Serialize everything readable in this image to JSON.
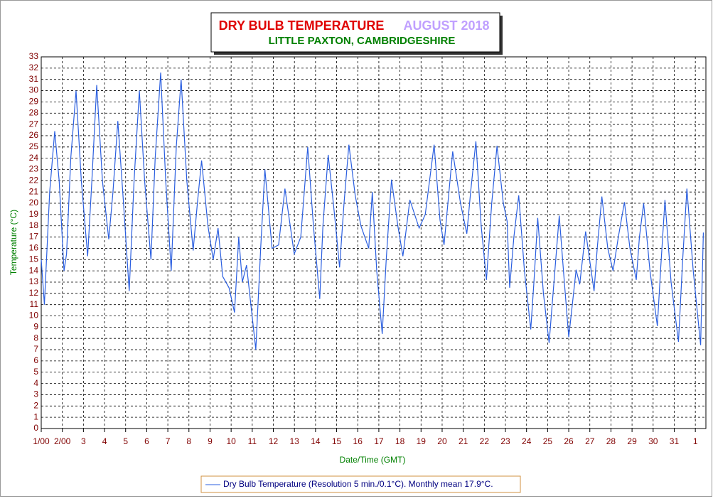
{
  "chart_data": {
    "type": "line",
    "title": "DRY BULB TEMPERATURE",
    "title_period": "AUGUST 2018",
    "subtitle": "LITTLE PAXTON, CAMBRIDGESHIRE",
    "y_label": "Temperature (°C)",
    "x_label": "Date/Time (GMT)",
    "x": [
      0,
      0.15,
      0.4,
      0.64,
      0.85,
      1.08,
      1.2,
      1.4,
      1.65,
      1.9,
      2.2,
      2.4,
      2.63,
      2.9,
      3.2,
      3.4,
      3.63,
      3.9,
      4.17,
      4.4,
      4.65,
      4.9,
      5.2,
      5.4,
      5.66,
      5.9,
      6.16,
      6.4,
      6.63,
      6.9,
      7.2,
      7.4,
      7.6,
      7.9,
      8.15,
      8.38,
      8.6,
      8.9,
      9.16,
      9.36,
      9.53,
      9.73,
      10.17,
      10.4,
      10.6,
      10.94,
      11.25,
      11.55,
      11.99,
      12.3,
      12.63,
      12.9,
      13.2,
      13.35,
      13.6,
      13.9,
      14.14,
      14.35,
      14.58,
      14.88,
      15.15,
      15.52,
      15.69,
      15.9,
      16.16,
      16.35,
      16.6,
      16.9,
      17.14,
      17.47,
      17.91,
      18.2,
      18.62,
      18.9,
      19.09,
      19.5,
      19.87,
      20.17,
      20.35,
      20.6,
      20.85,
      21.1,
      21.35,
      21.6,
      21.9,
      22.08,
      22.2,
      22.4,
      22.63,
      22.9,
      23.2,
      23.35,
      23.53,
      23.8,
      24.07,
      24.3,
      24.55,
      24.75,
      25.0,
      25.35,
      25.52,
      25.8,
      26.2,
      26.35,
      26.57,
      26.85,
      27.1,
      27.35,
      27.64,
      27.9,
      28.2,
      28.35,
      28.55,
      28.85,
      29.2,
      29.35,
      29.56,
      29.85,
      30.2,
      30.4,
      30.6,
      30.9,
      31.25,
      31.38
    ],
    "series": [
      {
        "name": "Dry Bulb Temperature (Resolution 5 min./0.1°C). Monthly mean 17.9°C.",
        "color": "#2b5fe0",
        "values": [
          15,
          11,
          21,
          26.4,
          22,
          14,
          15.5,
          24,
          30,
          22,
          15.3,
          22,
          30.5,
          22,
          16.8,
          21,
          27.3,
          20,
          12.2,
          22,
          30,
          22,
          15,
          24,
          31.6,
          22,
          14,
          25,
          31,
          22,
          15.8,
          20,
          23.8,
          18,
          15,
          17.8,
          13.5,
          12.5,
          10.3,
          17,
          13,
          14.5,
          7,
          16,
          23,
          16,
          16.3,
          21.3,
          15.5,
          17,
          25,
          18,
          11.5,
          18,
          24.3,
          19,
          14.3,
          20,
          25.2,
          20.7,
          18,
          16,
          21,
          14,
          8.4,
          15,
          22.1,
          18,
          15.3,
          20.3,
          17.8,
          19,
          25.2,
          18.5,
          16.3,
          24.6,
          20,
          17.3,
          21,
          25.5,
          18,
          13.2,
          20,
          25.1,
          20,
          18.4,
          12.5,
          17,
          20.7,
          14,
          8.8,
          13,
          18.7,
          12,
          7.6,
          13,
          18.9,
          14,
          8.1,
          14.1,
          12.8,
          17.5,
          12.2,
          16,
          20.6,
          16,
          14,
          17,
          20.1,
          16,
          13.2,
          17,
          20,
          14,
          9.1,
          14,
          20.3,
          13,
          7.7,
          15,
          21.3,
          14,
          7.4,
          17.4
        ]
      }
    ],
    "xlim": [
      0,
      31.5
    ],
    "xticks": [
      {
        "value": 0,
        "label": "1/00"
      },
      {
        "value": 1,
        "label": "2/00"
      },
      {
        "value": 2,
        "label": "3"
      },
      {
        "value": 3,
        "label": "4"
      },
      {
        "value": 4,
        "label": "5"
      },
      {
        "value": 5,
        "label": "6"
      },
      {
        "value": 6,
        "label": "7"
      },
      {
        "value": 7,
        "label": "8"
      },
      {
        "value": 8,
        "label": "9"
      },
      {
        "value": 9,
        "label": "10"
      },
      {
        "value": 10,
        "label": "11"
      },
      {
        "value": 11,
        "label": "12"
      },
      {
        "value": 12,
        "label": "13"
      },
      {
        "value": 13,
        "label": "14"
      },
      {
        "value": 14,
        "label": "15"
      },
      {
        "value": 15,
        "label": "16"
      },
      {
        "value": 16,
        "label": "17"
      },
      {
        "value": 17,
        "label": "18"
      },
      {
        "value": 18,
        "label": "19"
      },
      {
        "value": 19,
        "label": "20"
      },
      {
        "value": 20,
        "label": "21"
      },
      {
        "value": 21,
        "label": "22"
      },
      {
        "value": 22,
        "label": "23"
      },
      {
        "value": 23,
        "label": "24"
      },
      {
        "value": 24,
        "label": "25"
      },
      {
        "value": 25,
        "label": "26"
      },
      {
        "value": 26,
        "label": "27"
      },
      {
        "value": 27,
        "label": "28"
      },
      {
        "value": 28,
        "label": "29"
      },
      {
        "value": 29,
        "label": "30"
      },
      {
        "value": 30,
        "label": "31"
      },
      {
        "value": 31,
        "label": "1"
      }
    ],
    "ylim": [
      0,
      33
    ],
    "yticks": [
      0,
      1,
      2,
      3,
      4,
      5,
      6,
      7,
      8,
      9,
      10,
      11,
      12,
      13,
      14,
      15,
      16,
      17,
      18,
      19,
      20,
      21,
      22,
      23,
      24,
      25,
      26,
      27,
      28,
      29,
      30,
      31,
      32,
      33
    ],
    "grid": true
  }
}
